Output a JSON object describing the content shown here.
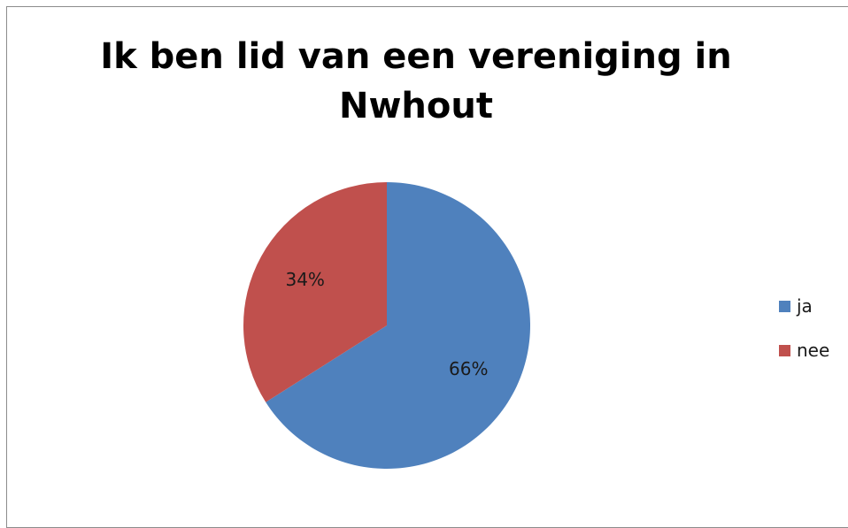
{
  "chart_data": {
    "type": "pie",
    "title": "Ik ben lid van een vereniging in Nwhout",
    "categories": [
      "ja",
      "nee"
    ],
    "values": [
      66,
      34
    ],
    "labels": [
      "66%",
      "34%"
    ],
    "colors": [
      "#4f81bd",
      "#c0504d"
    ],
    "legend_position": "right"
  }
}
